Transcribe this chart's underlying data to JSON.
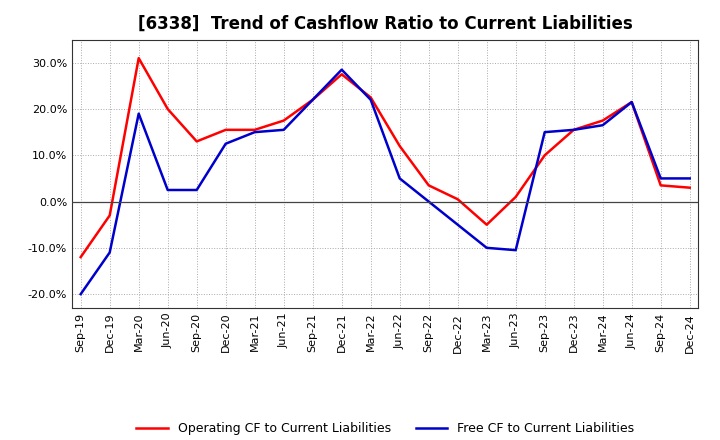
{
  "title": "[6338]  Trend of Cashflow Ratio to Current Liabilities",
  "labels": [
    "Sep-19",
    "Dec-19",
    "Mar-20",
    "Jun-20",
    "Sep-20",
    "Dec-20",
    "Mar-21",
    "Jun-21",
    "Sep-21",
    "Dec-21",
    "Mar-22",
    "Jun-22",
    "Sep-22",
    "Dec-22",
    "Mar-23",
    "Jun-23",
    "Sep-23",
    "Dec-23",
    "Mar-24",
    "Jun-24",
    "Sep-24",
    "Dec-24"
  ],
  "operating_cf_dense": [
    -12.0,
    -3.0,
    31.0,
    20.0,
    13.0,
    15.5,
    15.5,
    17.5,
    22.0,
    27.5,
    22.5,
    12.0,
    3.5,
    0.5,
    -5.0,
    1.0,
    10.0,
    15.5,
    17.5,
    21.5,
    3.5,
    3.0
  ],
  "free_cf_dense": [
    -20.0,
    -11.0,
    19.0,
    2.5,
    2.5,
    12.5,
    15.0,
    15.5,
    22.0,
    28.5,
    22.0,
    5.0,
    0.0,
    -5.0,
    -10.0,
    -10.5,
    15.0,
    15.5,
    16.5,
    21.5,
    5.0,
    5.0
  ],
  "ylim": [
    -23,
    35
  ],
  "yticks": [
    -20.0,
    -10.0,
    0.0,
    10.0,
    20.0,
    30.0
  ],
  "operating_color": "#ff0000",
  "free_color": "#0000cc",
  "background_color": "#ffffff",
  "grid_color": "#aaaaaa",
  "legend_op_label": "Operating CF to Current Liabilities",
  "legend_free_label": "Free CF to Current Liabilities",
  "title_fontsize": 12,
  "axis_fontsize": 8
}
